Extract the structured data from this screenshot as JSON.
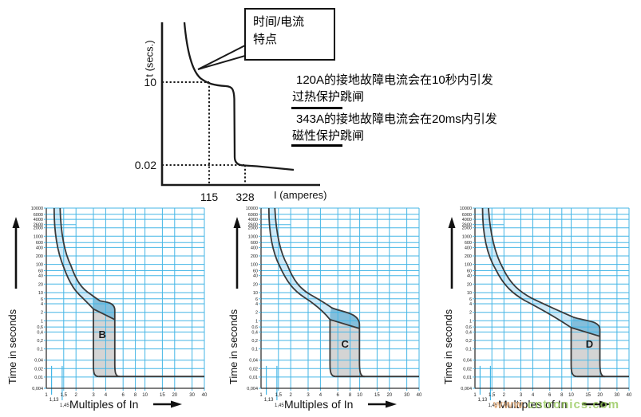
{
  "top_diagram": {
    "callout": {
      "line1": "时间/电流",
      "line2": "特点"
    },
    "y_axis_label": "t (secs.)",
    "y_tick_10": "10",
    "y_tick_002": "0.02",
    "x_tick_115": "115",
    "x_tick_328": "328",
    "x_axis_label": "I (amperes)",
    "annotations": [
      {
        "line1": "120A的接地故障电流会在10秒内引发",
        "line2": "过热保护跳闸"
      },
      {
        "line1": "343A的接地故障电流会在20ms内引发",
        "line2": "磁性保护跳闸"
      }
    ]
  },
  "watermark": {
    "prefix": "www.",
    "suffix": "cntronics.com"
  },
  "colors": {
    "grid": "#45b6e6",
    "band_pale": "#cfe9f7",
    "band_dark": "#84bedb",
    "band_gray": "#d4d4d4",
    "outline": "#3a3a3a",
    "axis": "#333333"
  },
  "chart_data": {
    "type": "line",
    "description": "MCB time/current tripping characteristic bands for curve types B, C and D",
    "x_axis_label": "Multiples of In",
    "y_axis_label": "Time in seconds",
    "x_scale": "log",
    "y_scale": "log",
    "x_range": [
      1,
      40
    ],
    "y_range": [
      0.004,
      10000
    ],
    "x_ticks": {
      "values": [
        1,
        1.5,
        2,
        3,
        4,
        6,
        8,
        10,
        15,
        20,
        30,
        40
      ],
      "labels": [
        "1",
        "1,5",
        "2",
        "3",
        "4",
        "6",
        "8",
        "10",
        "15",
        "20",
        "30",
        "40"
      ]
    },
    "x_sub_ticks": {
      "values": [
        1.13,
        1.45
      ],
      "labels": [
        "1,13",
        "1,45"
      ]
    },
    "y_ticks": {
      "values": [
        10000,
        6000,
        4000,
        2600,
        2000,
        1000,
        600,
        400,
        200,
        100,
        60,
        40,
        20,
        10,
        6,
        4,
        2,
        1,
        0.6,
        0.4,
        0.2,
        0.1,
        0.04,
        0.02,
        0.01,
        0.004
      ],
      "labels": [
        "10000",
        "6000",
        "4000",
        "2600",
        "2000",
        "1000",
        "600",
        "400",
        "200",
        "100",
        "60",
        "40",
        "20",
        "10",
        "6",
        "4",
        "2",
        "1",
        "0,6",
        "0,4",
        "0,2",
        "0,1",
        "0,04",
        "0,02",
        "0,01",
        "0,004"
      ]
    },
    "charts": [
      {
        "label": "B",
        "magnetic_trip_band_multiples": [
          3,
          5
        ],
        "instantaneous_trip_time_seconds": 0.01,
        "paths": {
          "left": [
            [
              "M",
              1.2,
              10000
            ],
            [
              "C",
              1.2,
              1500,
              1.28,
              300,
              1.5,
              80
            ],
            [
              "C",
              1.75,
              18,
              2.0,
              10.5,
              2.35,
              6.3
            ],
            [
              "C",
              2.6,
              4.4,
              2.8,
              3.4,
              3.0,
              2.6
            ],
            [
              "L",
              3.0,
              0.025
            ],
            [
              "C",
              3.0,
              0.014,
              3.05,
              0.0105,
              3.4,
              0.0105
            ]
          ],
          "right": [
            [
              "M",
              1.38,
              10000
            ],
            [
              "C",
              1.4,
              1500,
              1.5,
              300,
              1.78,
              90
            ],
            [
              "C",
              2.05,
              22,
              2.35,
              13,
              2.8,
              8.8
            ],
            [
              "C",
              3.1,
              6.8,
              3.3,
              5.8,
              3.5,
              5.1
            ],
            [
              "C",
              4.1,
              4.6,
              4.9,
              4.4,
              4.95,
              2.5
            ],
            [
              "L",
              4.95,
              0.03
            ],
            [
              "C",
              4.95,
              0.015,
              5.0,
              0.0105,
              5.55,
              0.0105
            ]
          ],
          "diag": [
            [
              "M",
              3.0,
              2.6
            ],
            [
              "L",
              4.95,
              1.1
            ]
          ],
          "bottom": [
            [
              "M",
              3.4,
              0.0105
            ],
            [
              "L",
              40,
              0.0105
            ]
          ],
          "dark": [
            [
              "M",
              3.0,
              2.6
            ],
            [
              "L",
              4.95,
              1.1
            ],
            [
              "L",
              4.95,
              2.5
            ],
            [
              "C",
              4.9,
              4.4,
              4.1,
              4.6,
              3.5,
              5.1
            ],
            [
              "C",
              3.3,
              5.8,
              3.1,
              6.8,
              2.98,
              7.4
            ],
            [
              "Z"
            ]
          ],
          "gray": [
            [
              "M",
              3.0,
              2.6
            ],
            [
              "L",
              4.95,
              1.1
            ],
            [
              "L",
              4.95,
              0.03
            ],
            [
              "C",
              4.95,
              0.015,
              5.0,
              0.0105,
              5.55,
              0.0105
            ],
            [
              "L",
              3.4,
              0.0105
            ],
            [
              "C",
              3.05,
              0.0105,
              3.0,
              0.014,
              3.0,
              0.025
            ],
            [
              "Z"
            ]
          ],
          "pale": [
            [
              "M",
              1.2,
              10000
            ],
            [
              "C",
              1.2,
              1500,
              1.28,
              300,
              1.5,
              80
            ],
            [
              "C",
              1.75,
              18,
              2.0,
              10.5,
              2.35,
              6.3
            ],
            [
              "C",
              2.6,
              4.4,
              2.8,
              3.4,
              3.0,
              2.6
            ],
            [
              "L",
              4.95,
              1.1
            ],
            [
              "L",
              4.95,
              2.5
            ],
            [
              "C",
              4.9,
              4.4,
              4.1,
              4.6,
              3.5,
              5.1
            ],
            [
              "C",
              3.3,
              5.8,
              3.1,
              6.8,
              2.8,
              8.8
            ],
            [
              "C",
              2.35,
              13,
              2.05,
              22,
              1.78,
              90
            ],
            [
              "C",
              1.5,
              300,
              1.4,
              1500,
              1.38,
              10000
            ],
            [
              "Z"
            ]
          ]
        }
      },
      {
        "label": "C",
        "magnetic_trip_band_multiples": [
          5,
          10
        ],
        "instantaneous_trip_time_seconds": 0.01,
        "paths": {
          "left": [
            [
              "M",
              1.2,
              10000
            ],
            [
              "C",
              1.2,
              1500,
              1.3,
              280,
              1.55,
              85
            ],
            [
              "C",
              1.85,
              22,
              2.15,
              12,
              2.7,
              7
            ],
            [
              "C",
              3.4,
              4.2,
              4.2,
              2.4,
              5.0,
              1.1
            ],
            [
              "L",
              5.0,
              0.028
            ],
            [
              "C",
              5.0,
              0.015,
              5.1,
              0.0105,
              5.7,
              0.0105
            ]
          ],
          "right": [
            [
              "M",
              1.38,
              10000
            ],
            [
              "C",
              1.42,
              1500,
              1.55,
              280,
              1.85,
              95
            ],
            [
              "C",
              2.15,
              25,
              2.5,
              14,
              3.1,
              8.8
            ],
            [
              "C",
              3.8,
              5.9,
              4.5,
              4.2,
              5.2,
              2.9
            ],
            [
              "C",
              6.5,
              2.05,
              9.9,
              2.0,
              9.95,
              0.72
            ],
            [
              "L",
              9.95,
              0.035
            ],
            [
              "C",
              9.95,
              0.016,
              10.1,
              0.0105,
              11.2,
              0.0105
            ]
          ],
          "diag": [
            [
              "M",
              5.0,
              1.1
            ],
            [
              "L",
              9.95,
              0.53
            ]
          ],
          "bottom": [
            [
              "M",
              5.7,
              0.0105
            ],
            [
              "L",
              40,
              0.0105
            ]
          ],
          "dark": [
            [
              "M",
              5.0,
              1.1
            ],
            [
              "L",
              9.95,
              0.53
            ],
            [
              "L",
              9.95,
              0.72
            ],
            [
              "C",
              9.9,
              2.0,
              6.5,
              2.05,
              5.2,
              2.9
            ],
            [
              "C",
              5.1,
              2.55,
              5.02,
              1.9,
              5.0,
              1.6
            ],
            [
              "Z"
            ]
          ],
          "gray": [
            [
              "M",
              5.0,
              1.1
            ],
            [
              "L",
              9.95,
              0.53
            ],
            [
              "L",
              9.95,
              0.035
            ],
            [
              "C",
              9.95,
              0.016,
              10.1,
              0.0105,
              11.2,
              0.0105
            ],
            [
              "L",
              5.7,
              0.0105
            ],
            [
              "C",
              5.1,
              0.0105,
              5.0,
              0.015,
              5.0,
              0.028
            ],
            [
              "Z"
            ]
          ],
          "pale": [
            [
              "M",
              1.2,
              10000
            ],
            [
              "C",
              1.2,
              1500,
              1.3,
              280,
              1.55,
              85
            ],
            [
              "C",
              1.85,
              22,
              2.15,
              12,
              2.7,
              7
            ],
            [
              "C",
              3.4,
              4.2,
              4.2,
              2.4,
              5.0,
              1.1
            ],
            [
              "L",
              9.95,
              0.53
            ],
            [
              "L",
              9.95,
              0.72
            ],
            [
              "C",
              9.9,
              2.0,
              6.5,
              2.05,
              5.2,
              2.9
            ],
            [
              "C",
              4.5,
              4.2,
              3.8,
              5.9,
              3.1,
              8.8
            ],
            [
              "C",
              2.5,
              14,
              2.15,
              25,
              1.85,
              95
            ],
            [
              "C",
              1.55,
              280,
              1.42,
              1500,
              1.38,
              10000
            ],
            [
              "Z"
            ]
          ]
        }
      },
      {
        "label": "D",
        "magnetic_trip_band_multiples": [
          10,
          20
        ],
        "instantaneous_trip_time_seconds": 0.01,
        "paths": {
          "left": [
            [
              "M",
              1.2,
              10000
            ],
            [
              "C",
              1.2,
              1200,
              1.33,
              220,
              1.65,
              65
            ],
            [
              "C",
              2.0,
              17,
              2.5,
              9,
              3.3,
              5.2
            ],
            [
              "C",
              4.6,
              2.9,
              7.0,
              1.3,
              10.0,
              0.57
            ],
            [
              "L",
              10.0,
              0.028
            ],
            [
              "C",
              10.0,
              0.015,
              10.2,
              0.0105,
              11.5,
              0.0105
            ]
          ],
          "right": [
            [
              "M",
              1.38,
              10000
            ],
            [
              "C",
              1.44,
              1200,
              1.6,
              250,
              1.95,
              75
            ],
            [
              "C",
              2.35,
              19,
              2.95,
              10.5,
              3.9,
              6.3
            ],
            [
              "C",
              5.2,
              3.9,
              7.8,
              2.1,
              10.5,
              1.35
            ],
            [
              "C",
              13.5,
              0.98,
              19.8,
              1.05,
              19.9,
              0.5
            ],
            [
              "L",
              19.9,
              0.035
            ],
            [
              "C",
              19.9,
              0.016,
              20.2,
              0.0105,
              22.5,
              0.0105
            ]
          ],
          "diag": [
            [
              "M",
              10.0,
              0.57
            ],
            [
              "L",
              19.9,
              0.28
            ]
          ],
          "bottom": [
            [
              "M",
              11.5,
              0.0105
            ],
            [
              "L",
              40,
              0.0105
            ]
          ],
          "dark": [
            [
              "M",
              10.0,
              0.57
            ],
            [
              "L",
              19.9,
              0.28
            ],
            [
              "L",
              19.9,
              0.5
            ],
            [
              "C",
              19.8,
              1.05,
              13.5,
              0.98,
              10.5,
              1.35
            ],
            [
              "C",
              10.3,
              1.15,
              10.1,
              0.8,
              10.0,
              0.68
            ],
            [
              "Z"
            ]
          ],
          "gray": [
            [
              "M",
              10.0,
              0.57
            ],
            [
              "L",
              19.9,
              0.28
            ],
            [
              "L",
              19.9,
              0.035
            ],
            [
              "C",
              19.9,
              0.016,
              20.2,
              0.0105,
              22.5,
              0.0105
            ],
            [
              "L",
              11.5,
              0.0105
            ],
            [
              "C",
              10.2,
              0.0105,
              10.0,
              0.015,
              10.0,
              0.028
            ],
            [
              "Z"
            ]
          ],
          "pale": [
            [
              "M",
              1.2,
              10000
            ],
            [
              "C",
              1.2,
              1200,
              1.33,
              220,
              1.65,
              65
            ],
            [
              "C",
              2.0,
              17,
              2.5,
              9,
              3.3,
              5.2
            ],
            [
              "C",
              4.6,
              2.9,
              7.0,
              1.3,
              10.0,
              0.57
            ],
            [
              "L",
              19.9,
              0.28
            ],
            [
              "L",
              19.9,
              0.5
            ],
            [
              "C",
              19.8,
              1.05,
              13.5,
              0.98,
              10.5,
              1.35
            ],
            [
              "C",
              7.8,
              2.1,
              5.2,
              3.9,
              3.9,
              6.3
            ],
            [
              "C",
              2.95,
              10.5,
              2.35,
              19,
              1.95,
              75
            ],
            [
              "C",
              1.6,
              250,
              1.44,
              1200,
              1.38,
              10000
            ],
            [
              "Z"
            ]
          ]
        }
      }
    ]
  }
}
